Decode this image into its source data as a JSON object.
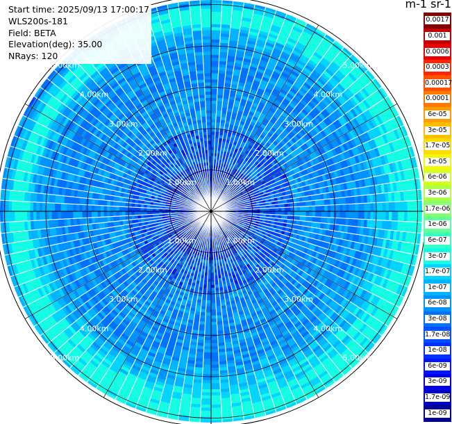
{
  "info": {
    "start_time": "Start time: 2025/09/13 17:00:17",
    "instrument": "WLS200s-181",
    "field": "Field: BETA",
    "elevation": "Elevation(deg): 35.00",
    "nrays": "NRays: 120"
  },
  "chart_data": {
    "type": "heatmap",
    "projection": "polar (PPI scan)",
    "title": "",
    "unit_label": "m-1 sr-1",
    "range_rings_km": [
      1,
      2,
      3,
      4,
      5
    ],
    "ring_labels": [
      "1.00km",
      "2.00km",
      "3.00km",
      "4.00km",
      "5.00km"
    ],
    "n_rays": 120,
    "max_range_km": 5.2,
    "colorbar": {
      "ticks": [
        "0.0017",
        "0.001",
        "0.0006",
        "0.0003",
        "0.00017",
        "0.0001",
        "6e-05",
        "3e-05",
        "1.7e-05",
        "1e-05",
        "6e-06",
        "3e-06",
        "1.7e-06",
        "1e-06",
        "6e-07",
        "3e-07",
        "1.7e-07",
        "1e-07",
        "6e-08",
        "3e-08",
        "1.7e-08",
        "1e-08",
        "6e-09",
        "3e-09",
        "1.7e-09",
        "1e-09"
      ],
      "colors": [
        "#840000",
        "#c00000",
        "#ea0000",
        "#ff2500",
        "#ff5000",
        "#ff7a00",
        "#ff9d00",
        "#ffbd00",
        "#ffdc00",
        "#f2f900",
        "#d4ff22",
        "#aeff48",
        "#86ff71",
        "#60ff97",
        "#35ffc2",
        "#13fde4",
        "#00d4ff",
        "#00b4ff",
        "#0093ff",
        "#0070ff",
        "#0050ff",
        "#0030ff",
        "#0014ff",
        "#0000ea",
        "#0000c0",
        "#000093"
      ]
    }
  }
}
